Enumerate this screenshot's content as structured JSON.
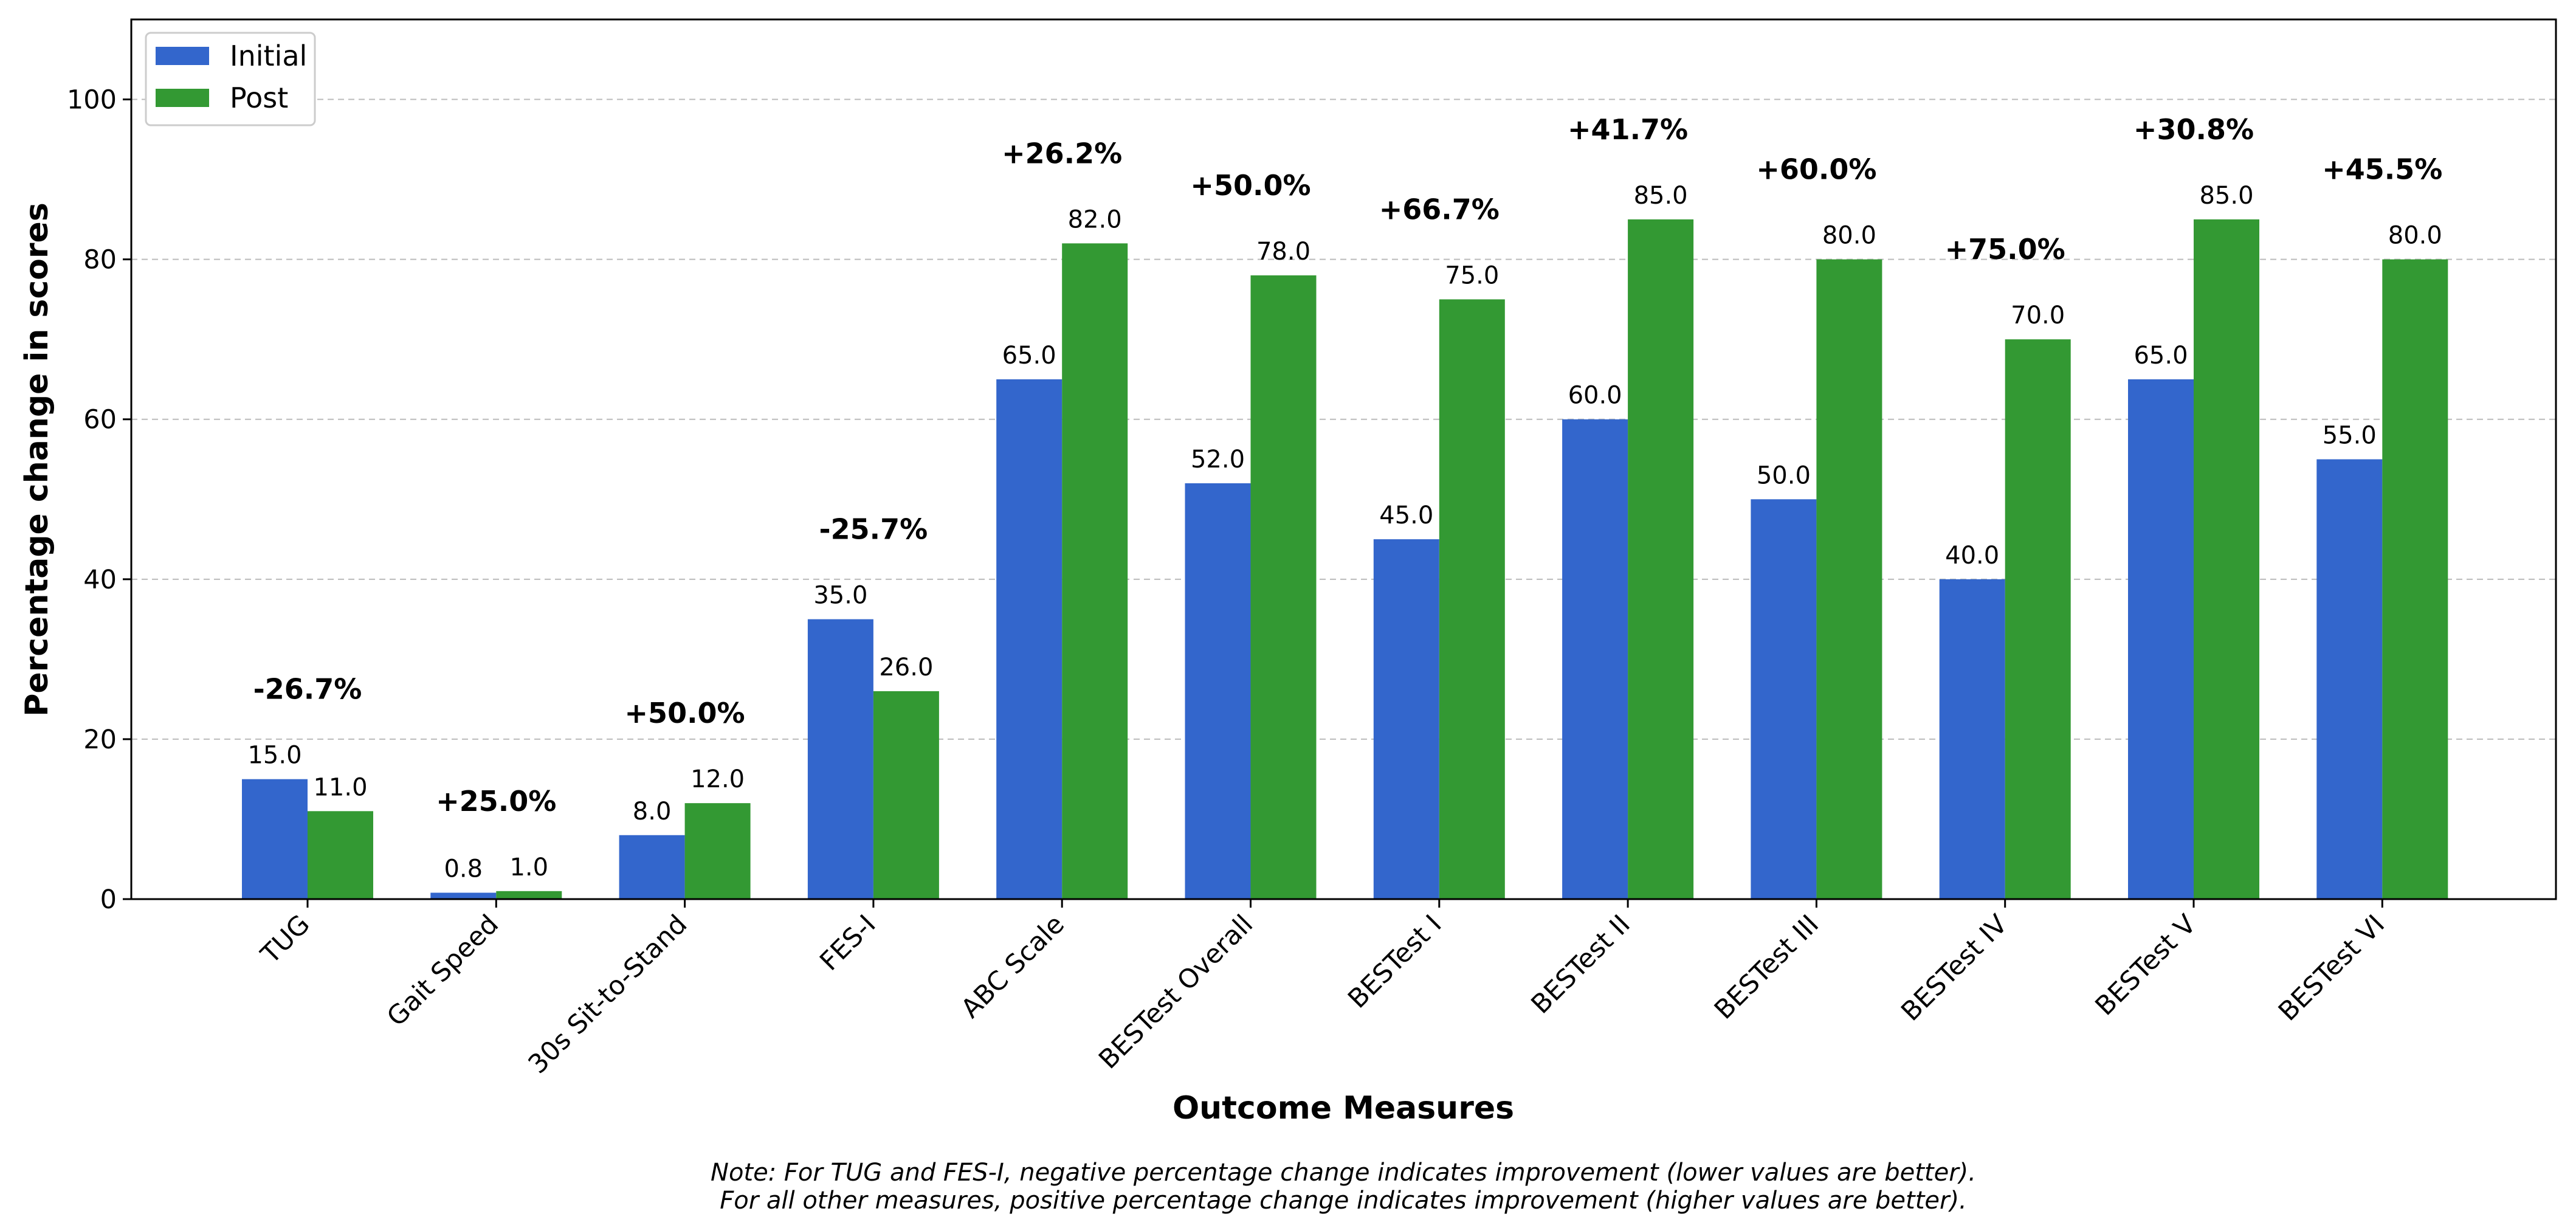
{
  "chart_data": {
    "type": "bar",
    "title": "",
    "xlabel": "Outcome Measures",
    "ylabel": "Percentage change in scores",
    "ylim": [
      0,
      110
    ],
    "yticks": [
      0,
      20,
      40,
      60,
      80,
      100
    ],
    "grid": "y-dashed",
    "legend_position": "top-left",
    "categories": [
      "TUG",
      "Gait Speed",
      "30s Sit-to-Stand",
      "FES-I",
      "ABC Scale",
      "BESTest Overall",
      "BESTest I",
      "BESTest II",
      "BESTest III",
      "BESTest IV",
      "BESTest V",
      "BESTest VI"
    ],
    "series": [
      {
        "name": "Initial",
        "color": "#3366cc",
        "values": [
          15.0,
          0.8,
          8.0,
          35.0,
          65.0,
          52.0,
          45.0,
          60.0,
          50.0,
          40.0,
          65.0,
          55.0
        ]
      },
      {
        "name": "Post",
        "color": "#339933",
        "values": [
          11.0,
          1.0,
          12.0,
          26.0,
          82.0,
          78.0,
          75.0,
          85.0,
          80.0,
          70.0,
          85.0,
          80.0
        ]
      }
    ],
    "value_labels": {
      "Initial": [
        "15.0",
        "0.8",
        "8.0",
        "35.0",
        "65.0",
        "52.0",
        "45.0",
        "60.0",
        "50.0",
        "40.0",
        "65.0",
        "55.0"
      ],
      "Post": [
        "11.0",
        "1.0",
        "12.0",
        "26.0",
        "82.0",
        "78.0",
        "75.0",
        "85.0",
        "80.0",
        "70.0",
        "85.0",
        "80.0"
      ]
    },
    "percent_change_labels": [
      "-26.7%",
      "+25.0%",
      "+50.0%",
      "-25.7%",
      "+26.2%",
      "+50.0%",
      "+66.7%",
      "+41.7%",
      "+60.0%",
      "+75.0%",
      "+30.8%",
      "+45.5%"
    ],
    "note_lines": [
      "Note: For TUG and FES-I, negative percentage change indicates improvement (lower values are better).",
      "For all other measures, positive percentage change indicates improvement (higher values are better)."
    ]
  }
}
